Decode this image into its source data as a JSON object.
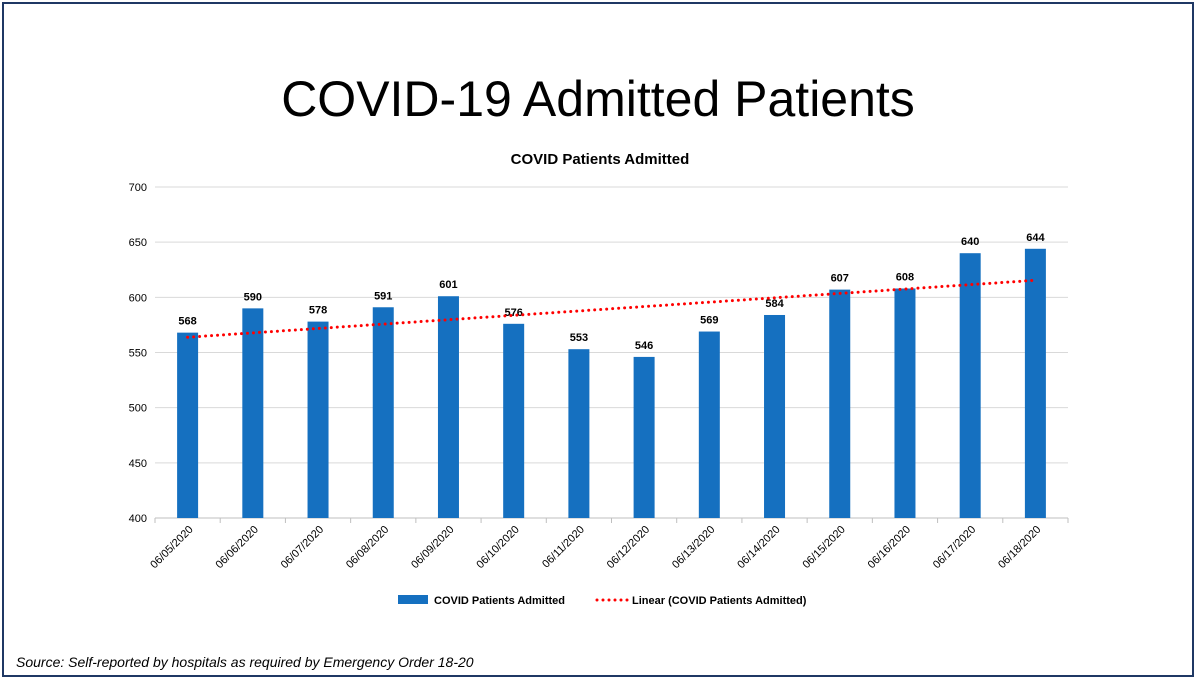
{
  "slide": {
    "title": "COVID-19 Admitted Patients",
    "source_note": "Source: Self-reported by hospitals as required by Emergency Order 18-20"
  },
  "chart_data": {
    "type": "bar",
    "title": "COVID Patients Admitted",
    "categories": [
      "06/05/2020",
      "06/06/2020",
      "06/07/2020",
      "06/08/2020",
      "06/09/2020",
      "06/10/2020",
      "06/11/2020",
      "06/12/2020",
      "06/13/2020",
      "06/14/2020",
      "06/15/2020",
      "06/16/2020",
      "06/17/2020",
      "06/18/2020"
    ],
    "series": [
      {
        "name": "COVID Patients Admitted",
        "values": [
          568,
          590,
          578,
          591,
          601,
          576,
          553,
          546,
          569,
          584,
          607,
          608,
          640,
          644
        ],
        "color": "#1570c0",
        "data_labels": true
      }
    ],
    "trendline": {
      "name": "Linear (COVID Patients Admitted)",
      "type": "linear",
      "color": "#ff0000",
      "style": "dotted"
    },
    "ylim": [
      400,
      700
    ],
    "yticks": [
      400,
      450,
      500,
      550,
      600,
      650,
      700
    ],
    "xlabel": "",
    "ylabel": "",
    "grid": true,
    "legend_position": "bottom"
  }
}
